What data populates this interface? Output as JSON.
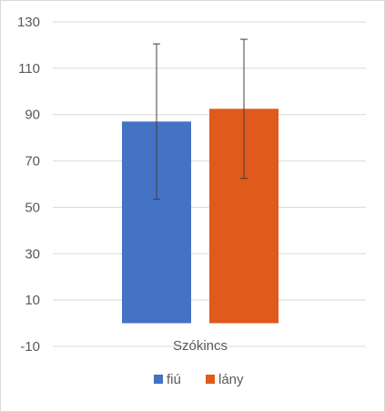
{
  "chart_data": {
    "type": "bar",
    "categories": [
      "Szókincs"
    ],
    "series": [
      {
        "name": "fiú",
        "values": [
          87
        ],
        "error": [
          33.5
        ],
        "color": "#4472c4"
      },
      {
        "name": "lány",
        "values": [
          92.5
        ],
        "error": [
          30
        ],
        "color": "#e05a1c"
      }
    ],
    "ylim": [
      -10,
      130
    ],
    "yticks": [
      -10,
      10,
      30,
      50,
      70,
      90,
      110,
      130
    ],
    "grid": true,
    "legend_position": "bottom"
  }
}
